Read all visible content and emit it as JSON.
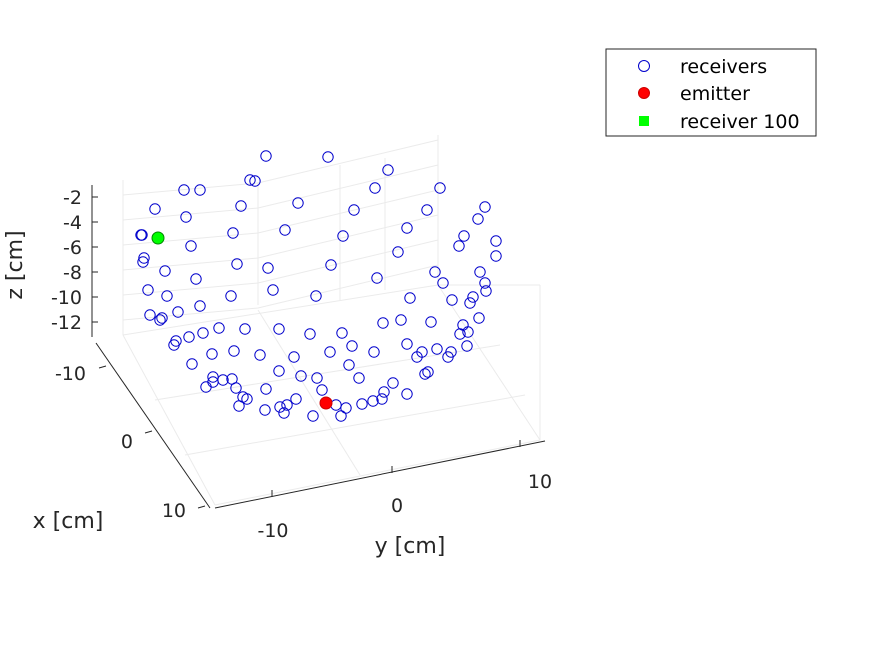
{
  "chart_data": {
    "type": "scatter3d",
    "title": "",
    "xlabel": "x [cm]",
    "ylabel": "y [cm]",
    "zlabel": "z [cm]",
    "xticks": [
      "-10",
      "0",
      "10"
    ],
    "yticks": [
      "-10",
      "0",
      "10"
    ],
    "zticks": [
      "-2",
      "-4",
      "-6",
      "-8",
      "-10",
      "-12"
    ],
    "grid": true,
    "legend_position": "top-right",
    "series": [
      {
        "name": "receivers",
        "marker": "circle-open",
        "color": "#0000cc",
        "points": [
          [
            155,
            209
          ],
          [
            186,
            217
          ],
          [
            233,
            233
          ],
          [
            184,
            190
          ],
          [
            200,
            190
          ],
          [
            241,
            206
          ],
          [
            191,
            246
          ],
          [
            237,
            264
          ],
          [
            266,
            156
          ],
          [
            328,
            157
          ],
          [
            388,
            170
          ],
          [
            440,
            188
          ],
          [
            485,
            207
          ],
          [
            496,
            241
          ],
          [
            142,
            235
          ],
          [
            165,
            271
          ],
          [
            250,
            180
          ],
          [
            255,
            181
          ],
          [
            298,
            203
          ],
          [
            354,
            210
          ],
          [
            407,
            228
          ],
          [
            427,
            210
          ],
          [
            464,
            236
          ],
          [
            478,
            219
          ],
          [
            496,
            256
          ],
          [
            143,
            262
          ],
          [
            148,
            290
          ],
          [
            167,
            296
          ],
          [
            196,
            279
          ],
          [
            231,
            296
          ],
          [
            268,
            268
          ],
          [
            285,
            230
          ],
          [
            343,
            236
          ],
          [
            398,
            252
          ],
          [
            435,
            272
          ],
          [
            459,
            246
          ],
          [
            480,
            272
          ],
          [
            485,
            283
          ],
          [
            470,
            303
          ],
          [
            150,
            315
          ],
          [
            160,
            320
          ],
          [
            178,
            312
          ],
          [
            200,
            306
          ],
          [
            273,
            290
          ],
          [
            316,
            296
          ],
          [
            331,
            265
          ],
          [
            377,
            278
          ],
          [
            410,
            298
          ],
          [
            452,
            300
          ],
          [
            486,
            291
          ],
          [
            479,
            318
          ],
          [
            463,
            325
          ],
          [
            144,
            258
          ],
          [
            141,
            235
          ],
          [
            162,
            318
          ],
          [
            176,
            341
          ],
          [
            189,
            337
          ],
          [
            203,
            333
          ],
          [
            219,
            328
          ],
          [
            245,
            329
          ],
          [
            279,
            329
          ],
          [
            310,
            334
          ],
          [
            342,
            333
          ],
          [
            383,
            323
          ],
          [
            401,
            320
          ],
          [
            431,
            322
          ],
          [
            460,
            334
          ],
          [
            467,
            346
          ],
          [
            451,
            352
          ],
          [
            448,
            357
          ],
          [
            422,
            352
          ],
          [
            407,
            344
          ],
          [
            374,
            352
          ],
          [
            352,
            346
          ],
          [
            330,
            352
          ],
          [
            294,
            357
          ],
          [
            260,
            355
          ],
          [
            234,
            351
          ],
          [
            212,
            354
          ],
          [
            192,
            364
          ],
          [
            174,
            345
          ],
          [
            213,
            382
          ],
          [
            232,
            379
          ],
          [
            243,
            397
          ],
          [
            266,
            389
          ],
          [
            280,
            407
          ],
          [
            301,
            376
          ],
          [
            317,
            378
          ],
          [
            349,
            365
          ],
          [
            359,
            378
          ],
          [
            384,
            392
          ],
          [
            407,
            394
          ],
          [
            425,
            374
          ],
          [
            437,
            349
          ],
          [
            428,
            372
          ],
          [
            393,
            383
          ],
          [
            373,
            401
          ],
          [
            362,
            404
          ],
          [
            346,
            408
          ],
          [
            341,
            416
          ],
          [
            313,
            416
          ],
          [
            296,
            399
          ],
          [
            287,
            405
          ],
          [
            284,
            413
          ],
          [
            265,
            410
          ],
          [
            247,
            399
          ],
          [
            236,
            388
          ],
          [
            206,
            387
          ],
          [
            223,
            380
          ],
          [
            213,
            377
          ],
          [
            239,
            406
          ],
          [
            279,
            371
          ],
          [
            322,
            390
          ],
          [
            336,
            405
          ],
          [
            382,
            399
          ],
          [
            417,
            357
          ],
          [
            468,
            332
          ],
          [
            473,
            297
          ],
          [
            443,
            283
          ],
          [
            375,
            188
          ]
        ]
      },
      {
        "name": "emitter",
        "marker": "circle-filled",
        "color": "#ff0000",
        "edge_color": "#cc0000",
        "points": [
          [
            326,
            403
          ]
        ]
      },
      {
        "name": "receiver 100",
        "marker": "circle-filled",
        "color": "#00ff00",
        "edge_color": "#008800",
        "points": [
          [
            158,
            238
          ]
        ]
      }
    ]
  },
  "legend": {
    "entries": [
      {
        "label": "receivers",
        "marker": "circle-open",
        "color": "#0000cc"
      },
      {
        "label": "emitter",
        "marker": "circle-filled",
        "color": "#ff0000"
      },
      {
        "label": "receiver 100",
        "marker": "square-filled",
        "color": "#00ff00"
      }
    ]
  }
}
